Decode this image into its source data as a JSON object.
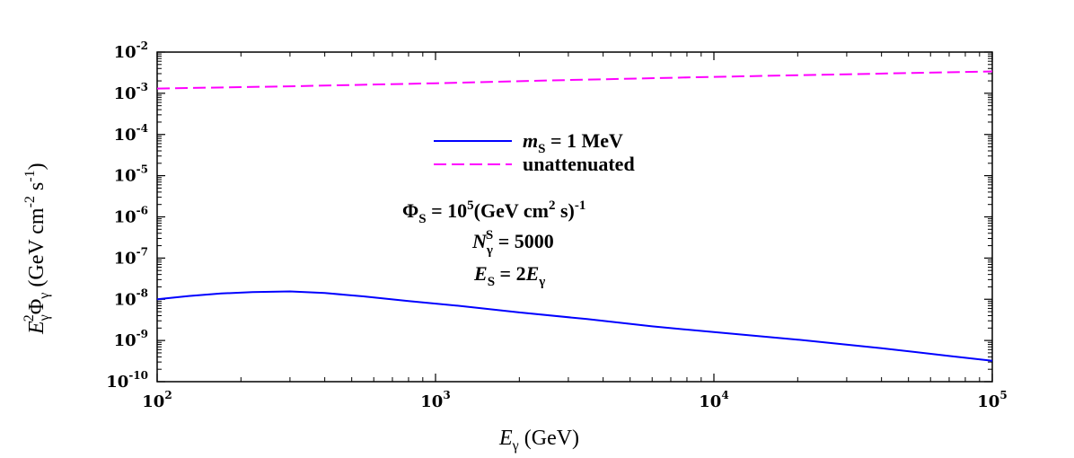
{
  "chart_data": {
    "type": "line",
    "xscale": "log",
    "yscale": "log",
    "xlim": [
      100,
      100000
    ],
    "ylim": [
      1e-10,
      0.01
    ],
    "x_ticks": [
      {
        "base": "10",
        "exp": "2"
      },
      {
        "base": "10",
        "exp": "3"
      },
      {
        "base": "10",
        "exp": "4"
      },
      {
        "base": "10",
        "exp": "5"
      }
    ],
    "y_ticks": [
      {
        "base": "10",
        "exp": "-10"
      },
      {
        "base": "10",
        "exp": "-9"
      },
      {
        "base": "10",
        "exp": "-8"
      },
      {
        "base": "10",
        "exp": "-7"
      },
      {
        "base": "10",
        "exp": "-6"
      },
      {
        "base": "10",
        "exp": "-5"
      },
      {
        "base": "10",
        "exp": "-4"
      },
      {
        "base": "10",
        "exp": "-3"
      },
      {
        "base": "10",
        "exp": "-2"
      }
    ],
    "xlabel": {
      "main": "E",
      "sub": "γ",
      "unit": " (GeV)"
    },
    "ylabel": {
      "e": "E",
      "e_sub": "γ",
      "e_sup": "2",
      "phi": "Φ",
      "phi_sub": "γ",
      "unit_open": " (GeV cm",
      "cm_sup": "-2",
      "s": " s",
      "s_sup": "-1",
      "close": ")"
    },
    "legend": [
      {
        "label_main": "m",
        "label_sub": "S",
        "label_rest": " = 1 MeV",
        "color": "#0000ff",
        "style": "solid"
      },
      {
        "label_main": "unattenuated",
        "label_sub": "",
        "label_rest": "",
        "color": "#ff00ff",
        "style": "dashed"
      }
    ],
    "annotations": [
      {
        "pre": "Φ",
        "sub": "S",
        "mid": " = 10",
        "sup": "5",
        "post": "(GeV cm",
        "sup2": "2",
        "post2": " s)",
        "sup3": "-1"
      },
      {
        "pre": "N",
        "sub": "γ",
        "sup": "S",
        "post": " = 5000"
      },
      {
        "pre": "E",
        "sub": "S",
        "post": " = 2",
        "pre2": "E",
        "sub2": "γ"
      }
    ],
    "series": [
      {
        "name": "m_S = 1 MeV",
        "color": "#0000ff",
        "x": [
          100,
          130,
          170,
          220,
          300,
          400,
          550,
          800,
          1200,
          2000,
          3500,
          6000,
          10000,
          20000,
          40000,
          70000,
          100000
        ],
        "y": [
          1e-08,
          1.2e-08,
          1.38e-08,
          1.5e-08,
          1.55e-08,
          1.42e-08,
          1.18e-08,
          9e-09,
          7e-09,
          4.8e-09,
          3.3e-09,
          2.2e-09,
          1.6e-09,
          1.05e-09,
          6.5e-10,
          4.2e-10,
          3.2e-10
        ]
      },
      {
        "name": "unattenuated",
        "color": "#ff00ff",
        "x": [
          100,
          300,
          1000,
          3000,
          10000,
          30000,
          100000
        ],
        "y": [
          0.0013,
          0.00148,
          0.00175,
          0.0021,
          0.0025,
          0.0029,
          0.0034
        ]
      }
    ]
  }
}
